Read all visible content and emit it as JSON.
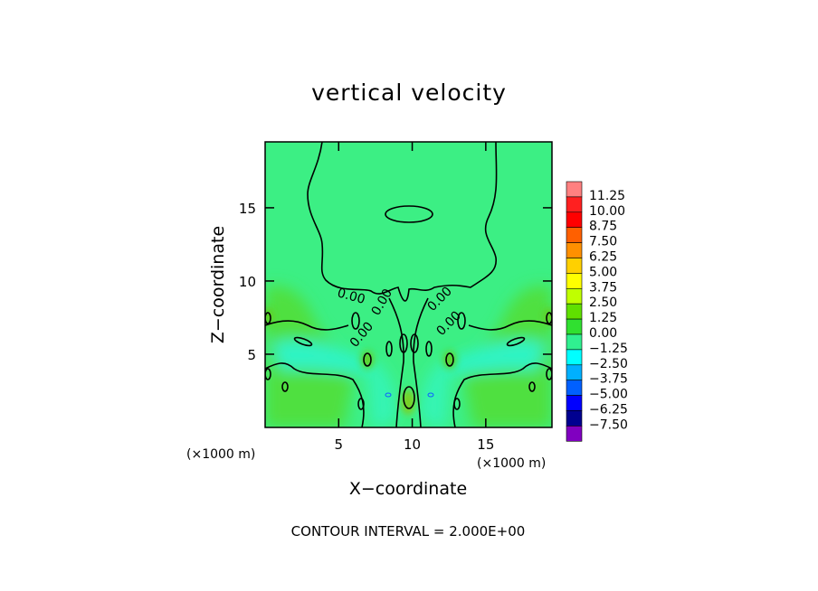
{
  "chart_data": {
    "type": "heatmap",
    "title": "vertical velocity",
    "xlabel": "X−coordinate",
    "ylabel": "Z−coordinate",
    "x_unit_label": "(×1000 m)",
    "y_unit_label": "(×1000 m)",
    "xlim": [
      0,
      19.5
    ],
    "ylim": [
      0,
      19.5
    ],
    "x_ticks": [
      5,
      10,
      15
    ],
    "y_ticks": [
      5,
      10,
      15
    ],
    "x_tick_labels": [
      "5",
      "10",
      "15"
    ],
    "y_tick_labels": [
      "5",
      "10",
      "15"
    ],
    "colorbar": {
      "levels": [
        "11.25",
        "10.00",
        "8.75",
        "7.50",
        "6.25",
        "5.00",
        "3.75",
        "2.50",
        "1.25",
        "0.00",
        "−1.25",
        "−2.50",
        "−3.75",
        "−5.00",
        "−6.25",
        "−7.50"
      ],
      "colors": [
        "#ff8080",
        "#ff2020",
        "#ff0000",
        "#ff6000",
        "#ff9000",
        "#ffd000",
        "#ffff00",
        "#c0ff00",
        "#60e000",
        "#30e030",
        "#30f090",
        "#00ffff",
        "#00b0ff",
        "#0060ff",
        "#0000ff",
        "#000090",
        "#8000c0"
      ]
    },
    "contour_labels": [
      "0.00",
      "0.00",
      "0.00",
      "0.00",
      "0.00"
    ],
    "background_level": "0.00",
    "note": "CONTOUR INTERVAL = 2.000E+00"
  }
}
